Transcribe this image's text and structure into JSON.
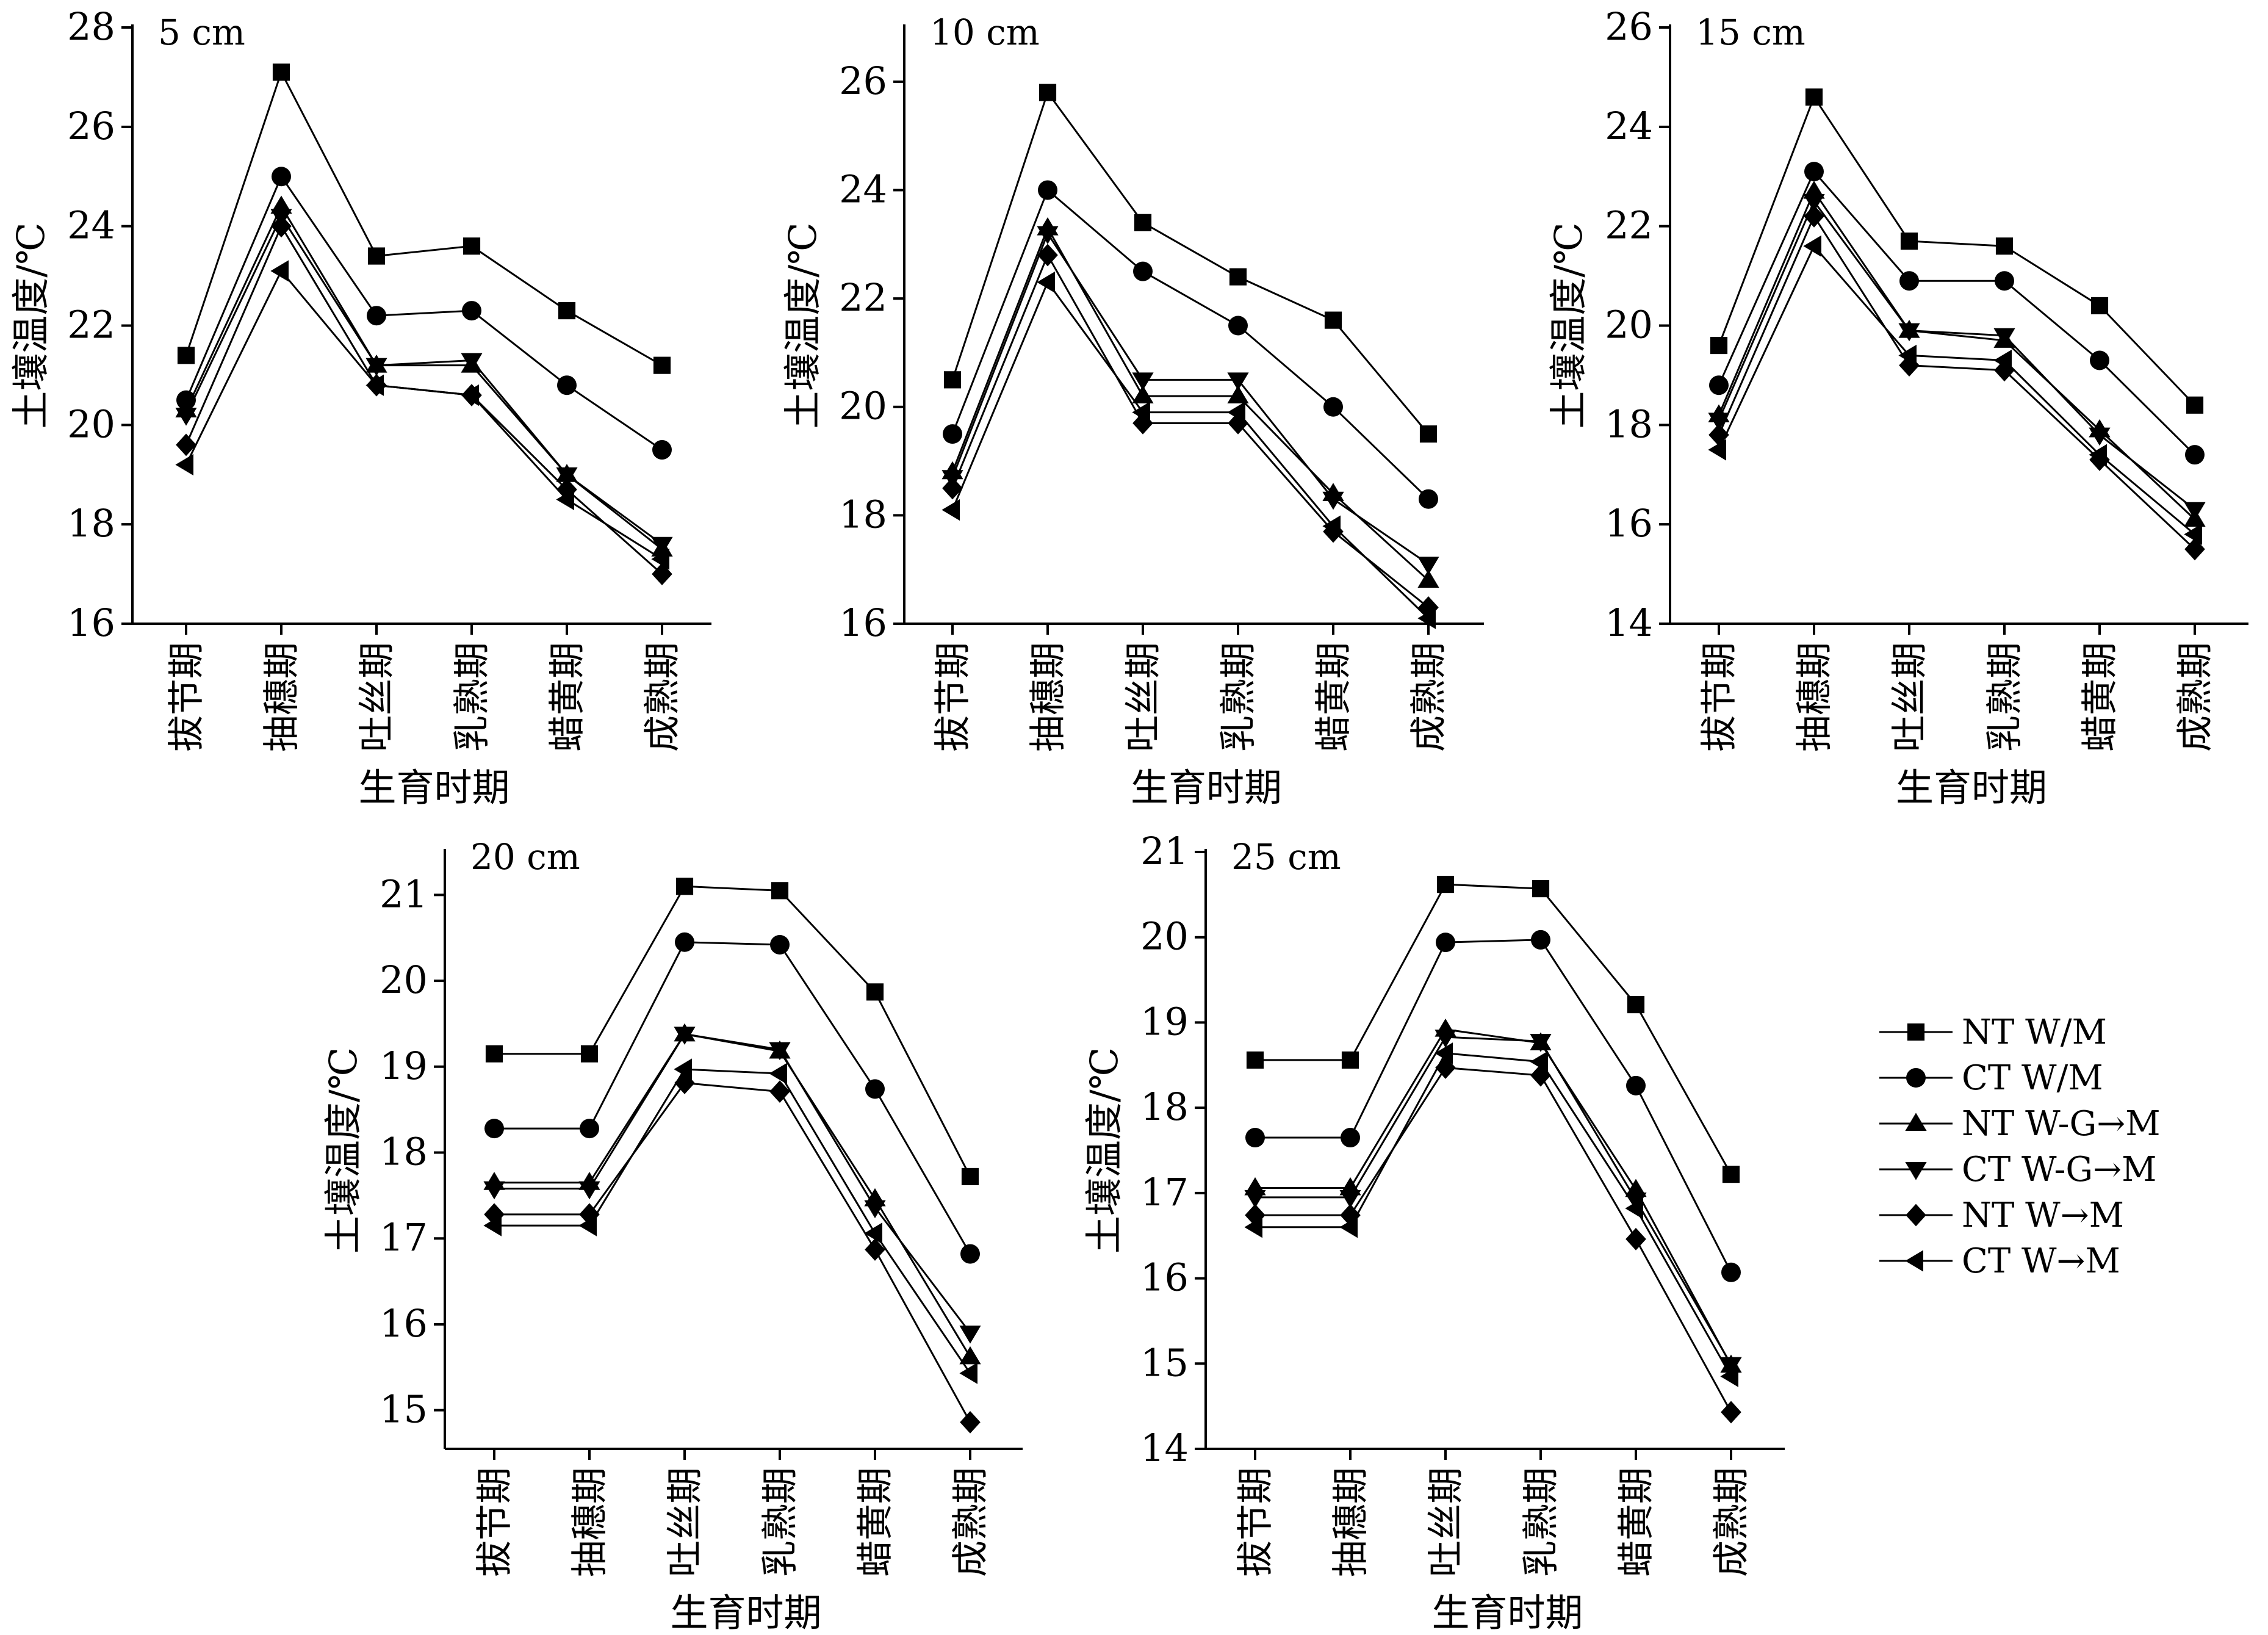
{
  "chart_data": [
    {
      "type": "line",
      "title": "5 cm",
      "xlabel": "生育时期",
      "ylabel": "土壤温度/℃",
      "categories": [
        "拔节期",
        "抽穗期",
        "吐丝期",
        "乳熟期",
        "蜡黄期",
        "成熟期"
      ],
      "ylim": [
        16,
        28
      ],
      "yticks": [
        16,
        18,
        20,
        22,
        24,
        26,
        28
      ],
      "series": [
        {
          "name": "NT W/M",
          "marker": "square",
          "values": [
            21.4,
            27.1,
            23.4,
            23.6,
            22.3,
            21.2
          ]
        },
        {
          "name": "CT W/M",
          "marker": "circle",
          "values": [
            20.5,
            25.0,
            22.2,
            22.3,
            20.8,
            19.5
          ]
        },
        {
          "name": "NT W-G→M",
          "marker": "triangle-up",
          "values": [
            20.3,
            24.4,
            21.2,
            21.2,
            19.0,
            17.5
          ]
        },
        {
          "name": "CT W-G→M",
          "marker": "triangle-down",
          "values": [
            20.2,
            24.2,
            21.2,
            21.3,
            19.0,
            17.6
          ]
        },
        {
          "name": "NT W→M",
          "marker": "diamond",
          "values": [
            19.6,
            24.0,
            20.8,
            20.6,
            18.7,
            17.0
          ]
        },
        {
          "name": "CT W→M",
          "marker": "triangle-left",
          "values": [
            19.2,
            23.1,
            20.8,
            20.6,
            18.5,
            17.3
          ]
        }
      ]
    },
    {
      "type": "line",
      "title": "10 cm",
      "xlabel": "生育时期",
      "ylabel": "土壤温度/℃",
      "categories": [
        "拔节期",
        "抽穗期",
        "吐丝期",
        "乳熟期",
        "蜡黄期",
        "成熟期"
      ],
      "ylim": [
        16,
        27
      ],
      "yticks": [
        16,
        18,
        20,
        22,
        24,
        26
      ],
      "series": [
        {
          "name": "NT W/M",
          "marker": "square",
          "values": [
            20.5,
            25.8,
            23.4,
            22.4,
            21.6,
            19.5
          ]
        },
        {
          "name": "CT W/M",
          "marker": "circle",
          "values": [
            19.5,
            24.0,
            22.5,
            21.5,
            20.0,
            18.3
          ]
        },
        {
          "name": "NT W-G→M",
          "marker": "triangle-up",
          "values": [
            18.8,
            23.3,
            20.2,
            20.2,
            18.4,
            16.8
          ]
        },
        {
          "name": "CT W-G→M",
          "marker": "triangle-down",
          "values": [
            18.7,
            23.2,
            20.5,
            20.5,
            18.3,
            17.1
          ]
        },
        {
          "name": "NT W→M",
          "marker": "diamond",
          "values": [
            18.5,
            22.8,
            19.7,
            19.7,
            17.7,
            16.3
          ]
        },
        {
          "name": "CT W→M",
          "marker": "triangle-left",
          "values": [
            18.1,
            22.3,
            19.9,
            19.9,
            17.8,
            16.1
          ]
        }
      ]
    },
    {
      "type": "line",
      "title": "15 cm",
      "xlabel": "生育时期",
      "ylabel": "土壤温度/℃",
      "categories": [
        "拔节期",
        "抽穗期",
        "吐丝期",
        "乳熟期",
        "蜡黄期",
        "成熟期"
      ],
      "ylim": [
        14,
        26
      ],
      "yticks": [
        14,
        16,
        18,
        20,
        22,
        24,
        26
      ],
      "series": [
        {
          "name": "NT W/M",
          "marker": "square",
          "values": [
            19.6,
            24.6,
            21.7,
            21.6,
            20.4,
            18.4
          ]
        },
        {
          "name": "CT W/M",
          "marker": "circle",
          "values": [
            18.8,
            23.1,
            20.9,
            20.9,
            19.3,
            17.4
          ]
        },
        {
          "name": "NT W-G→M",
          "marker": "triangle-up",
          "values": [
            18.2,
            22.7,
            19.9,
            19.7,
            17.9,
            16.1
          ]
        },
        {
          "name": "CT W-G→M",
          "marker": "triangle-down",
          "values": [
            18.1,
            22.5,
            19.9,
            19.8,
            17.8,
            16.3
          ]
        },
        {
          "name": "NT W→M",
          "marker": "diamond",
          "values": [
            17.8,
            22.2,
            19.2,
            19.1,
            17.3,
            15.5
          ]
        },
        {
          "name": "CT W→M",
          "marker": "triangle-left",
          "values": [
            17.5,
            21.6,
            19.4,
            19.3,
            17.4,
            15.8
          ]
        }
      ]
    },
    {
      "type": "line",
      "title": "20 cm",
      "xlabel": "生育时期",
      "ylabel": "土壤温度/℃",
      "categories": [
        "拔节期",
        "抽穗期",
        "吐丝期",
        "乳熟期",
        "蜡黄期",
        "成熟期"
      ],
      "ylim": [
        14.55,
        21.5
      ],
      "yticks": [
        15,
        16,
        17,
        18,
        19,
        20,
        21
      ],
      "series": [
        {
          "name": "NT W/M",
          "marker": "square",
          "values": [
            19.15,
            19.15,
            21.1,
            21.05,
            19.87,
            17.72
          ]
        },
        {
          "name": "CT W/M",
          "marker": "circle",
          "values": [
            18.28,
            18.28,
            20.45,
            20.42,
            18.74,
            16.82
          ]
        },
        {
          "name": "NT W-G→M",
          "marker": "triangle-up",
          "values": [
            17.65,
            17.65,
            19.38,
            19.18,
            17.46,
            15.62
          ]
        },
        {
          "name": "CT W-G→M",
          "marker": "triangle-down",
          "values": [
            17.58,
            17.58,
            19.38,
            19.2,
            17.36,
            15.9
          ]
        },
        {
          "name": "NT W→M",
          "marker": "diamond",
          "values": [
            17.28,
            17.28,
            18.81,
            18.71,
            16.87,
            14.86
          ]
        },
        {
          "name": "CT W→M",
          "marker": "triangle-left",
          "values": [
            17.15,
            17.15,
            18.97,
            18.92,
            17.06,
            15.43
          ]
        }
      ]
    },
    {
      "type": "line",
      "title": "25 cm",
      "xlabel": "生育时期",
      "ylabel": "土壤温度/℃",
      "categories": [
        "拔节期",
        "抽穗期",
        "吐丝期",
        "乳熟期",
        "蜡黄期",
        "成熟期"
      ],
      "ylim": [
        14,
        21
      ],
      "yticks": [
        14,
        15,
        16,
        17,
        18,
        19,
        20,
        21
      ],
      "series": [
        {
          "name": "NT W/M",
          "marker": "square",
          "values": [
            18.56,
            18.56,
            20.62,
            20.57,
            19.21,
            17.22
          ]
        },
        {
          "name": "CT W/M",
          "marker": "circle",
          "values": [
            17.65,
            17.65,
            19.94,
            19.97,
            18.26,
            16.07
          ]
        },
        {
          "name": "NT W-G→M",
          "marker": "triangle-up",
          "values": [
            17.06,
            17.06,
            18.92,
            18.76,
            17.04,
            14.98
          ]
        },
        {
          "name": "CT W-G→M",
          "marker": "triangle-down",
          "values": [
            16.95,
            16.95,
            18.83,
            18.78,
            16.92,
            14.99
          ]
        },
        {
          "name": "NT W→M",
          "marker": "diamond",
          "values": [
            16.74,
            16.74,
            18.47,
            18.38,
            16.46,
            14.43
          ]
        },
        {
          "name": "CT W→M",
          "marker": "triangle-left",
          "values": [
            16.6,
            16.6,
            18.64,
            18.54,
            16.82,
            14.85
          ]
        }
      ]
    }
  ],
  "legend": {
    "placement": "right",
    "entries": [
      {
        "name": "NT W/M",
        "marker": "square"
      },
      {
        "name": "CT W/M",
        "marker": "circle"
      },
      {
        "name": "NT W-G→M",
        "marker": "triangle-up"
      },
      {
        "name": "CT W-G→M",
        "marker": "triangle-down"
      },
      {
        "name": "NT W→M",
        "marker": "diamond"
      },
      {
        "name": "CT W→M",
        "marker": "triangle-left"
      }
    ]
  }
}
